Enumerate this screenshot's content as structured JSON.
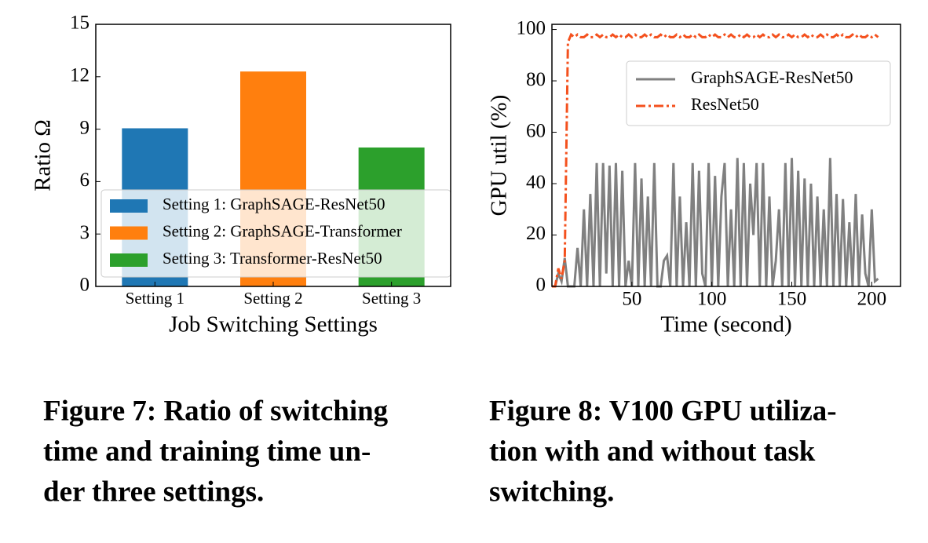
{
  "chart_data": [
    {
      "type": "bar",
      "ylabel": "Ratio Ω",
      "xlabel": "Job Switching Settings",
      "categories": [
        "Setting 1",
        "Setting 2",
        "Setting 3"
      ],
      "values": [
        9.05,
        12.3,
        7.95
      ],
      "colors": [
        "#1f77b4",
        "#ff7f0e",
        "#2ca02c"
      ],
      "legend_labels": [
        "Setting 1: GraphSAGE-ResNet50",
        "Setting 2: GraphSAGE-Transformer",
        "Setting 3: Transformer-ResNet50"
      ],
      "legend": "lower center",
      "ylim": [
        0,
        15
      ],
      "yticks": [
        0,
        3,
        6,
        9,
        12,
        15
      ],
      "caption": [
        "Figure 7: Ratio of switching",
        "time and training time un-",
        "der three settings."
      ]
    },
    {
      "type": "line",
      "ylabel": "GPU util (%)",
      "xlabel": "Time (second)",
      "x": [
        0,
        2,
        4,
        6,
        8,
        10,
        12,
        14,
        16,
        18,
        20,
        22,
        24,
        26,
        28,
        30,
        32,
        34,
        36,
        38,
        40,
        42,
        44,
        46,
        48,
        50,
        52,
        54,
        56,
        58,
        60,
        62,
        64,
        66,
        68,
        70,
        72,
        74,
        76,
        78,
        80,
        82,
        84,
        86,
        88,
        90,
        92,
        94,
        96,
        98,
        100,
        102,
        104,
        106,
        108,
        110,
        112,
        114,
        116,
        118,
        120,
        122,
        124,
        126,
        128,
        130,
        132,
        134,
        136,
        138,
        140,
        142,
        144,
        146,
        148,
        150,
        152,
        154,
        156,
        158,
        160,
        162,
        164,
        166,
        168,
        170,
        172,
        174,
        176,
        178,
        180,
        182,
        184,
        186,
        188,
        190,
        192,
        194,
        196,
        198,
        200,
        202,
        204
      ],
      "series": [
        {
          "name": "GraphSAGE-ResNet50",
          "color": "#808080",
          "dash": "solid",
          "values": [
            0,
            0,
            5,
            2,
            11,
            0,
            0,
            0,
            15,
            0,
            30,
            0,
            36,
            0,
            48,
            0,
            48,
            5,
            47,
            0,
            48,
            0,
            45,
            0,
            10,
            0,
            48,
            0,
            42,
            0,
            35,
            0,
            48,
            0,
            0,
            10,
            12,
            0,
            48,
            0,
            35,
            0,
            25,
            0,
            48,
            0,
            45,
            5,
            0,
            48,
            0,
            43,
            0,
            35,
            48,
            0,
            30,
            0,
            50,
            0,
            48,
            0,
            40,
            20,
            48,
            0,
            48,
            0,
            35,
            0,
            10,
            30,
            0,
            48,
            0,
            50,
            0,
            45,
            0,
            42,
            0,
            40,
            0,
            35,
            0,
            30,
            0,
            50,
            0,
            36,
            0,
            34,
            0,
            25,
            0,
            36,
            0,
            28,
            5,
            0,
            30,
            2,
            3
          ]
        },
        {
          "name": "ResNet50",
          "color": "#f4511e",
          "dash": "dashdot",
          "values": [
            0,
            0,
            7,
            3,
            10,
            95,
            98,
            97,
            98,
            97,
            97,
            98,
            97,
            97,
            98,
            97,
            98,
            97,
            97,
            98,
            97,
            98,
            97,
            97,
            98,
            97,
            98,
            97,
            97,
            98,
            97,
            98,
            97,
            97,
            98,
            97,
            98,
            97,
            97,
            98,
            97,
            98,
            97,
            97,
            98,
            97,
            98,
            97,
            97,
            98,
            97,
            98,
            97,
            97,
            98,
            97,
            98,
            97,
            97,
            98,
            97,
            98,
            97,
            97,
            98,
            97,
            98,
            97,
            97,
            98,
            97,
            98,
            97,
            97,
            98,
            97,
            98,
            97,
            97,
            98,
            97,
            98,
            97,
            97,
            98,
            97,
            98,
            97,
            97,
            98,
            97,
            98,
            97,
            97,
            98,
            97,
            98,
            97,
            97,
            98,
            97,
            98,
            97
          ]
        }
      ],
      "legend": "upper right",
      "xlim": [
        0,
        218
      ],
      "xticks": [
        50,
        100,
        150,
        200
      ],
      "ylim": [
        0,
        102
      ],
      "yticks": [
        0,
        20,
        40,
        60,
        80,
        100
      ],
      "caption": [
        "Figure 8: V100 GPU utiliza-",
        "tion with and without task",
        "switching."
      ]
    }
  ]
}
